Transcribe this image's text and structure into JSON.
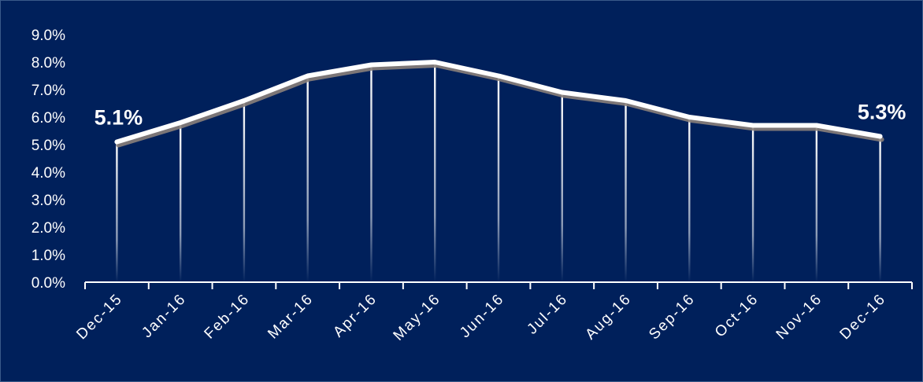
{
  "chart_data": {
    "type": "line",
    "categories": [
      "Dec-15",
      "Jan-16",
      "Feb-16",
      "Mar-16",
      "Apr-16",
      "May-16",
      "Jun-16",
      "Jul-16",
      "Aug-16",
      "Sep-16",
      "Oct-16",
      "Nov-16",
      "Dec-16"
    ],
    "values": [
      5.1,
      5.8,
      6.6,
      7.5,
      7.9,
      8.0,
      7.5,
      6.9,
      6.6,
      6.0,
      5.7,
      5.7,
      5.3
    ],
    "y_ticks": [
      "0.0%",
      "1.0%",
      "2.0%",
      "3.0%",
      "4.0%",
      "5.0%",
      "6.0%",
      "7.0%",
      "8.0%",
      "9.0%"
    ],
    "ylim": [
      0,
      9
    ],
    "data_labels": [
      {
        "index": 0,
        "text": "5.1%"
      },
      {
        "index": 12,
        "text": "5.3%"
      }
    ],
    "title": "",
    "xlabel": "",
    "ylabel": "",
    "grid": false,
    "legend": "none",
    "colors": {
      "background": "#00205b",
      "line": "#ffffff",
      "shadow": "#8a7f7a",
      "drop_lines": "#ffffff",
      "axis": "#ffffff"
    }
  }
}
